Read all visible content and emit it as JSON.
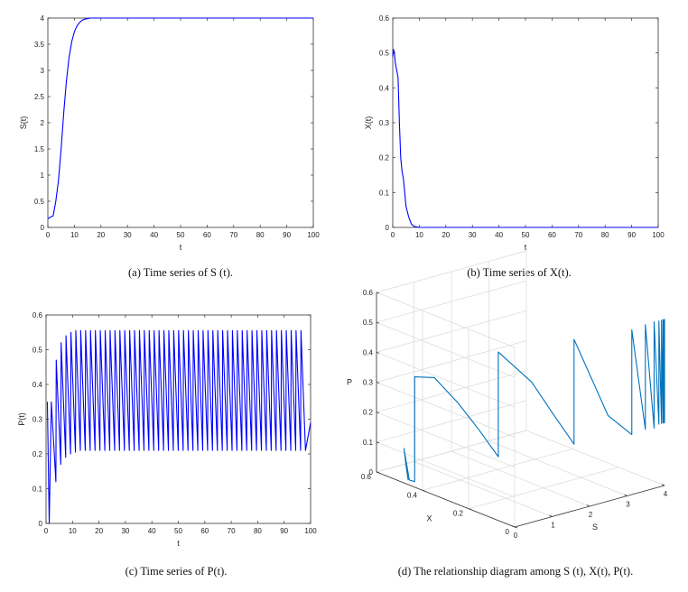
{
  "chart_data": [
    {
      "type": "line",
      "panel": "a",
      "caption": "(a)  Time series of S (t).",
      "xlabel": "t",
      "ylabel": "S(t)",
      "xlim": [
        0,
        100
      ],
      "ylim": [
        0,
        4
      ],
      "xticks": [
        0,
        10,
        20,
        30,
        40,
        50,
        60,
        70,
        80,
        90,
        100
      ],
      "yticks": [
        0,
        0.5,
        1,
        1.5,
        2,
        2.5,
        3,
        3.5,
        4
      ],
      "color": "#0000ff",
      "x": [
        0,
        0.5,
        1,
        2,
        3,
        4,
        5,
        6,
        7,
        8,
        9,
        10,
        11,
        12,
        13,
        14,
        15,
        16,
        17,
        18,
        20,
        25,
        30,
        100
      ],
      "y": [
        0.17,
        0.18,
        0.2,
        0.22,
        0.5,
        0.9,
        1.5,
        2.2,
        2.8,
        3.25,
        3.55,
        3.74,
        3.85,
        3.92,
        3.96,
        3.98,
        3.99,
        4.0,
        4.0,
        4.0,
        4.0,
        4.0,
        4.0,
        4.0
      ]
    },
    {
      "type": "line",
      "panel": "b",
      "caption": "(b)  Time series of X(t).",
      "xlabel": "t",
      "ylabel": "X(t)",
      "xlim": [
        0,
        100
      ],
      "ylim": [
        0,
        0.6
      ],
      "xticks": [
        0,
        10,
        20,
        30,
        40,
        50,
        60,
        70,
        80,
        90,
        100
      ],
      "yticks": [
        0,
        0.1,
        0.2,
        0.3,
        0.4,
        0.5,
        0.6
      ],
      "color": "#0000ff",
      "x": [
        0,
        0.3,
        0.6,
        1,
        2,
        2.5,
        3,
        3.5,
        4,
        5,
        6,
        7,
        8,
        10,
        15,
        100
      ],
      "y": [
        0.49,
        0.51,
        0.5,
        0.47,
        0.43,
        0.3,
        0.2,
        0.16,
        0.14,
        0.06,
        0.03,
        0.01,
        0.003,
        0.0,
        0.0,
        0.0
      ]
    },
    {
      "type": "line",
      "panel": "c",
      "caption": "(c)  Time series of P(t).",
      "xlabel": "t",
      "ylabel": "P(t)",
      "xlim": [
        0,
        100
      ],
      "ylim": [
        0,
        0.6
      ],
      "xticks": [
        0,
        10,
        20,
        30,
        40,
        50,
        60,
        70,
        80,
        90,
        100
      ],
      "yticks": [
        0,
        0.1,
        0.2,
        0.3,
        0.4,
        0.5,
        0.6
      ],
      "color": "#0000ff",
      "start": [
        [
          0.5,
          0.35
        ],
        [
          1.2,
          0.0
        ]
      ],
      "oscillation": {
        "t_start": 2.0,
        "period": 1.85,
        "peaks": [
          0.35,
          0.47,
          0.52,
          0.54,
          0.55,
          0.555
        ],
        "troughs": [
          0.12,
          0.17,
          0.19,
          0.2,
          0.205,
          0.21
        ],
        "peak_steady": 0.555,
        "trough_steady": 0.21,
        "t_end": 100,
        "end_value": 0.29
      }
    },
    {
      "type": "line3d",
      "panel": "d",
      "caption": "(d)  The relationship diagram among S (t), X(t), P(t).",
      "xlabel": "S",
      "ylabel": "X",
      "zlabel": "P",
      "slim": [
        0,
        4
      ],
      "xlim": [
        0,
        0.6
      ],
      "zlim": [
        0,
        0.6
      ],
      "sticks": [
        0,
        1,
        2,
        3,
        4
      ],
      "xticks": [
        0,
        0.2,
        0.4,
        0.6
      ],
      "zticks": [
        0,
        0.1,
        0.2,
        0.3,
        0.4,
        0.5,
        0.6
      ],
      "color": "#0072bd",
      "points": [
        [
          0.17,
          0.49,
          0.0
        ],
        [
          0.17,
          0.5,
          0.05
        ],
        [
          0.18,
          0.51,
          0.1
        ],
        [
          0.2,
          0.49,
          0.0
        ],
        [
          0.22,
          0.47,
          0.0
        ],
        [
          0.22,
          0.47,
          0.35
        ],
        [
          0.5,
          0.43,
          0.35
        ],
        [
          0.7,
          0.36,
          0.28
        ],
        [
          0.9,
          0.3,
          0.2
        ],
        [
          1.1,
          0.25,
          0.12
        ],
        [
          1.1,
          0.25,
          0.47
        ],
        [
          1.5,
          0.17,
          0.38
        ],
        [
          1.8,
          0.13,
          0.28
        ],
        [
          2.2,
          0.1,
          0.17
        ],
        [
          2.2,
          0.1,
          0.52
        ],
        [
          2.8,
          0.05,
          0.26
        ],
        [
          3.25,
          0.02,
          0.19
        ],
        [
          3.25,
          0.02,
          0.54
        ],
        [
          3.55,
          0.01,
          0.2
        ],
        [
          3.55,
          0.01,
          0.55
        ],
        [
          3.74,
          0.003,
          0.2
        ],
        [
          3.74,
          0.003,
          0.555
        ],
        [
          3.85,
          0.0,
          0.21
        ],
        [
          3.85,
          0.0,
          0.555
        ],
        [
          3.92,
          0.0,
          0.21
        ],
        [
          3.92,
          0.0,
          0.555
        ],
        [
          3.96,
          0.0,
          0.21
        ],
        [
          3.96,
          0.0,
          0.555
        ],
        [
          3.98,
          0.0,
          0.21
        ],
        [
          3.98,
          0.0,
          0.555
        ],
        [
          4.0,
          0.0,
          0.21
        ],
        [
          4.0,
          0.0,
          0.555
        ],
        [
          4.0,
          0.0,
          0.21
        ]
      ]
    }
  ]
}
